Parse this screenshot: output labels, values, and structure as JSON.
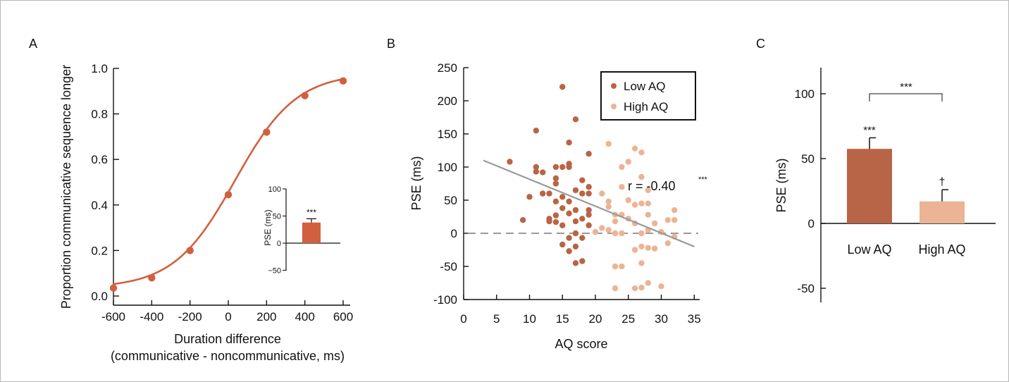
{
  "panels": {
    "a": "A",
    "b": "B",
    "c": "C"
  },
  "colors": {
    "low": "#b86446",
    "high": "#eab495",
    "curve": "#d25f3f",
    "regression": "#9a9a9a",
    "zero_line": "#9a9a9a",
    "axis": "#111111"
  },
  "chart_data": [
    {
      "id": "A",
      "type": "line",
      "xlabel": "Duration difference",
      "xlabel2": "(communicative - noncommunicative, ms)",
      "ylabel": "Proportion communicative sequence longer",
      "xlim": [
        -600,
        600
      ],
      "ylim": [
        0.0,
        1.0
      ],
      "xticks": [
        "-600",
        "-400",
        "-200",
        "0",
        "200",
        "400",
        "600"
      ],
      "yticks": [
        "0.0",
        "0.2",
        "0.4",
        "0.6",
        "0.8",
        "1.0"
      ],
      "points": {
        "x": [
          -600,
          -400,
          -200,
          0,
          200,
          400,
          600
        ],
        "y": [
          0.035,
          0.08,
          0.2,
          0.445,
          0.72,
          0.88,
          0.945
        ]
      },
      "fit_curve": "logistic",
      "inset": {
        "type": "bar",
        "ylabel": "PSE (ms)",
        "ylim": [
          -50,
          100
        ],
        "yticks": [
          "100",
          "50",
          "0",
          "−50"
        ],
        "value": 38,
        "error": 7,
        "significance": "***"
      }
    },
    {
      "id": "B",
      "type": "scatter",
      "xlabel": "AQ score",
      "ylabel": "PSE (ms)",
      "xlim": [
        0,
        38
      ],
      "ylim": [
        -100,
        250
      ],
      "xticks": [
        "0",
        "5",
        "10",
        "15",
        "20",
        "25",
        "30",
        "35"
      ],
      "yticks": [
        "250",
        "200",
        "150",
        "100",
        "50",
        "0",
        "-50",
        "-100"
      ],
      "legend": {
        "position": "top-right",
        "entries": [
          "Low AQ",
          "High AQ"
        ]
      },
      "annotation": "r = -0.40",
      "annotation_sig": "***",
      "regression": {
        "x": [
          3,
          35
        ],
        "y": [
          110,
          -20
        ]
      },
      "zero_line": 0,
      "series": [
        {
          "name": "Low AQ",
          "points": [
            [
              7,
              108
            ],
            [
              9,
              20
            ],
            [
              10,
              55
            ],
            [
              11,
              100
            ],
            [
              11,
              93
            ],
            [
              11,
              155
            ],
            [
              12,
              92
            ],
            [
              12,
              60
            ],
            [
              13,
              60
            ],
            [
              13,
              22
            ],
            [
              13,
              18
            ],
            [
              14,
              100
            ],
            [
              14,
              83
            ],
            [
              14,
              75
            ],
            [
              14,
              48
            ],
            [
              14,
              27
            ],
            [
              14,
              17
            ],
            [
              15,
              221
            ],
            [
              15,
              100
            ],
            [
              15,
              55
            ],
            [
              15,
              38
            ],
            [
              15,
              12
            ],
            [
              15,
              -17
            ],
            [
              16,
              137
            ],
            [
              16,
              105
            ],
            [
              16,
              100
            ],
            [
              16,
              48
            ],
            [
              16,
              30
            ],
            [
              16,
              -7
            ],
            [
              16,
              -27
            ],
            [
              17,
              172
            ],
            [
              17,
              65
            ],
            [
              17,
              35
            ],
            [
              17,
              18
            ],
            [
              17,
              0
            ],
            [
              17,
              -20
            ],
            [
              17,
              -45
            ],
            [
              18,
              80
            ],
            [
              18,
              60
            ],
            [
              18,
              22
            ],
            [
              18,
              -7
            ],
            [
              18,
              -42
            ],
            [
              19,
              120
            ],
            [
              19,
              70
            ],
            [
              19,
              60
            ],
            [
              19,
              35
            ],
            [
              19,
              28
            ],
            [
              19,
              12
            ]
          ]
        },
        {
          "name": "High AQ",
          "points": [
            [
              20,
              2
            ],
            [
              21,
              60
            ],
            [
              21,
              8
            ],
            [
              22,
              135
            ],
            [
              22,
              48
            ],
            [
              22,
              40
            ],
            [
              22,
              5
            ],
            [
              23,
              28
            ],
            [
              23,
              18
            ],
            [
              23,
              0
            ],
            [
              23,
              -50
            ],
            [
              24,
              100
            ],
            [
              24,
              70
            ],
            [
              24,
              28
            ],
            [
              24,
              0
            ],
            [
              24,
              -50
            ],
            [
              25,
              108
            ],
            [
              25,
              50
            ],
            [
              25,
              22
            ],
            [
              26,
              128
            ],
            [
              26,
              43
            ],
            [
              26,
              15
            ],
            [
              26,
              -25
            ],
            [
              27,
              122
            ],
            [
              27,
              85
            ],
            [
              27,
              45
            ],
            [
              27,
              0
            ],
            [
              27,
              -20
            ],
            [
              27,
              -45
            ],
            [
              27,
              -82
            ],
            [
              28,
              65
            ],
            [
              28,
              45
            ],
            [
              28,
              28
            ],
            [
              28,
              5
            ],
            [
              28,
              -22
            ],
            [
              28,
              -75
            ],
            [
              29,
              15
            ],
            [
              29,
              -23
            ],
            [
              30,
              2
            ],
            [
              30,
              -80
            ],
            [
              31,
              -15
            ],
            [
              31,
              20
            ],
            [
              32,
              35
            ],
            [
              32,
              20
            ],
            [
              32,
              -5
            ],
            [
              26,
              -83
            ],
            [
              23,
              -83
            ]
          ]
        }
      ]
    },
    {
      "id": "C",
      "type": "bar",
      "ylabel": "PSE (ms)",
      "ylim": [
        -60,
        120
      ],
      "yticks": [
        "100",
        "50",
        "0",
        "-50"
      ],
      "categories": [
        "Low AQ",
        "High AQ"
      ],
      "values": [
        57.5,
        17
      ],
      "errors": [
        8.5,
        9
      ],
      "bar_sig": [
        "***",
        "†"
      ],
      "bracket_sig": "***"
    }
  ]
}
